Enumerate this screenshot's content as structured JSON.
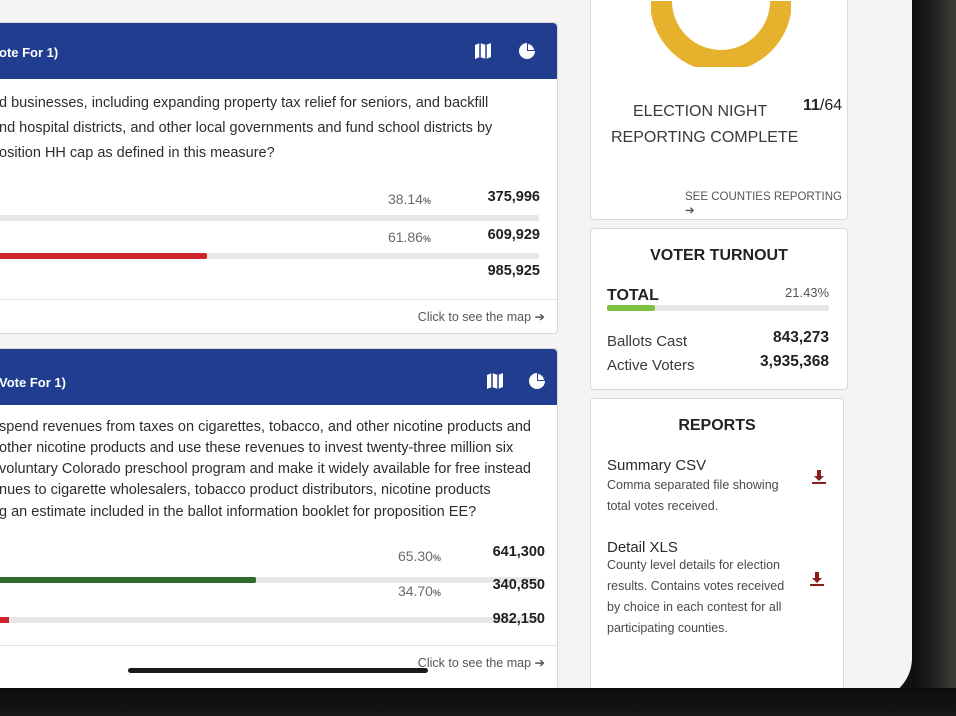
{
  "contests": [
    {
      "title_suffix": "ote For ",
      "title_count": "1)",
      "question_lines": [
        "d businesses, including expanding property tax relief for seniors, and backfill",
        "nd hospital districts, and other local governments and fund school districts by",
        "osition HH cap as defined in this measure?"
      ],
      "results": [
        {
          "percent": "38.14",
          "percent_sign": "%",
          "votes": "375,996",
          "bar_color": "#2c2c2c",
          "bar_fraction": 0.0
        },
        {
          "percent": "61.86",
          "percent_sign": "%",
          "votes": "609,929",
          "bar_color": "#d1232a",
          "bar_fraction": 0.39
        }
      ],
      "total_votes": "985,925",
      "map_link": "Click to see the map ➔"
    },
    {
      "title_suffix": "Vote For ",
      "title_count": "1)",
      "question_lines": [
        " spend revenues from taxes on cigarettes, tobacco, and other nicotine products and",
        "other nicotine products and use these revenues to invest twenty-three million six",
        " voluntary Colorado preschool program and make it widely available for free instead",
        "nues to cigarette wholesalers, tobacco product distributors, nicotine products",
        "g an estimate included in the ballot information booklet for proposition EE?"
      ],
      "results": [
        {
          "percent": "65.30",
          "percent_sign": "%",
          "votes": "641,300",
          "bar_color": "#2e6a2b",
          "bar_fraction": 0.48
        },
        {
          "percent": "34.70",
          "percent_sign": "%",
          "votes": "340,850",
          "bar_color": "#d1232a",
          "bar_fraction": 0.0
        }
      ],
      "total_votes": "982,150",
      "map_link": "Click to see the map ➔"
    }
  ],
  "election_night": {
    "line1": "ELECTION NIGHT",
    "line2": "REPORTING COMPLETE",
    "count": "11",
    "total": "/64",
    "see_counties": "SEE COUNTIES REPORTING ➔"
  },
  "turnout": {
    "title": "VOTER TURNOUT",
    "total_label": "TOTAL",
    "total_percent": "21.43%",
    "total_fraction": 0.2143,
    "ballots_label": "Ballots Cast",
    "ballots_value": "843,273",
    "active_label": "Active Voters",
    "active_value": "3,935,368",
    "bar_color": "#7dc142"
  },
  "reports": {
    "title": "REPORTS",
    "items": [
      {
        "name": "Summary CSV",
        "desc": [
          "Comma separated file showing",
          "total votes received."
        ]
      },
      {
        "name": "Detail XLS",
        "desc": [
          "County level details for election",
          "results. Contains votes received",
          "by choice in each contest for all",
          "participating counties."
        ]
      }
    ]
  },
  "colors": {
    "header_blue": "#213d8f",
    "donut_gold": "#e6b22e",
    "download_red": "#8b1d1d"
  }
}
